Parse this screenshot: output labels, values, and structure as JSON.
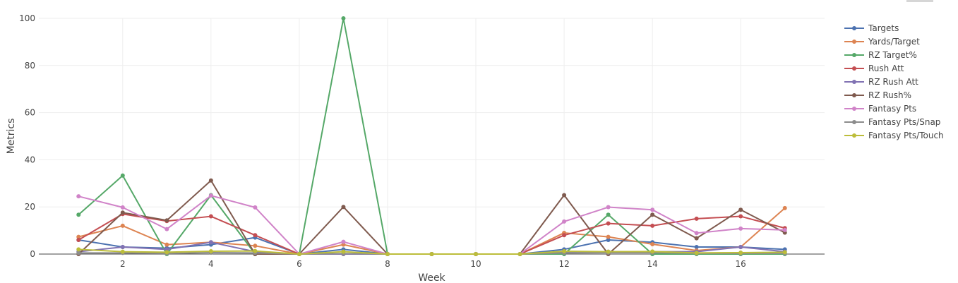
{
  "chart_data": {
    "type": "line",
    "title": "",
    "xlabel": "Week",
    "ylabel": "Metrics",
    "xlim": [
      0.1,
      17.9
    ],
    "ylim": [
      0,
      100
    ],
    "x_ticks": [
      2,
      4,
      6,
      8,
      10,
      12,
      14,
      16
    ],
    "y_ticks": [
      0,
      20,
      40,
      60,
      80,
      100
    ],
    "grid": true,
    "legend_position": "right",
    "x": [
      1,
      2,
      3,
      4,
      5,
      6,
      7,
      8,
      9,
      10,
      11,
      12,
      13,
      14,
      15,
      16,
      17
    ],
    "series": [
      {
        "name": "Targets",
        "color": "#4c72b0",
        "values": [
          6,
          3,
          2.5,
          4,
          7,
          0,
          2,
          0,
          0,
          0,
          0,
          2,
          6,
          5,
          3,
          3,
          2
        ]
      },
      {
        "name": "Yards/Target",
        "color": "#dd8452",
        "values": [
          7.3,
          12,
          4,
          5,
          3.5,
          0,
          4,
          0,
          0,
          0,
          0,
          9,
          7.3,
          4.2,
          1.5,
          3,
          19.5
        ]
      },
      {
        "name": "RZ Target%",
        "color": "#55a868",
        "values": [
          16.7,
          33.3,
          0,
          25,
          0,
          0,
          100,
          0,
          0,
          0,
          0,
          0,
          16.7,
          0,
          0,
          0,
          0
        ]
      },
      {
        "name": "Rush Att",
        "color": "#c44e52",
        "values": [
          6,
          17,
          14,
          16,
          8,
          0,
          0,
          0,
          0,
          0,
          0,
          8,
          13,
          12,
          15,
          16,
          11
        ]
      },
      {
        "name": "RZ Rush Att",
        "color": "#8172b3",
        "values": [
          1,
          3,
          2,
          5,
          1,
          0,
          0,
          0,
          0,
          0,
          0,
          1,
          1,
          1,
          1,
          3,
          1
        ]
      },
      {
        "name": "RZ Rush%",
        "color": "#7f5a4e",
        "values": [
          0,
          17.6,
          14.3,
          31.2,
          0,
          0,
          20,
          0,
          0,
          0,
          0,
          25,
          0,
          16.7,
          6.7,
          18.8,
          9.1
        ]
      },
      {
        "name": "Fantasy Pts",
        "color": "#d083c8",
        "values": [
          24.5,
          19.8,
          10.6,
          24.8,
          19.8,
          0,
          5.2,
          0,
          0,
          0,
          0,
          13.8,
          19.9,
          18.8,
          8.9,
          10.8,
          10.2
        ]
      },
      {
        "name": "Fantasy Pts/Snap",
        "color": "#8c8c8c",
        "values": [
          0.5,
          0.5,
          0.3,
          0.6,
          0.5,
          0,
          0.2,
          0,
          0,
          0,
          0,
          0.5,
          0.6,
          0.6,
          0.3,
          0.3,
          0.3
        ]
      },
      {
        "name": "Fantasy Pts/Touch",
        "color": "#bcbd3a",
        "values": [
          2,
          1,
          0.8,
          1.2,
          1.3,
          0,
          1,
          0,
          0,
          0,
          0,
          1.2,
          1,
          1.1,
          0.5,
          0.6,
          0.8
        ]
      }
    ]
  }
}
